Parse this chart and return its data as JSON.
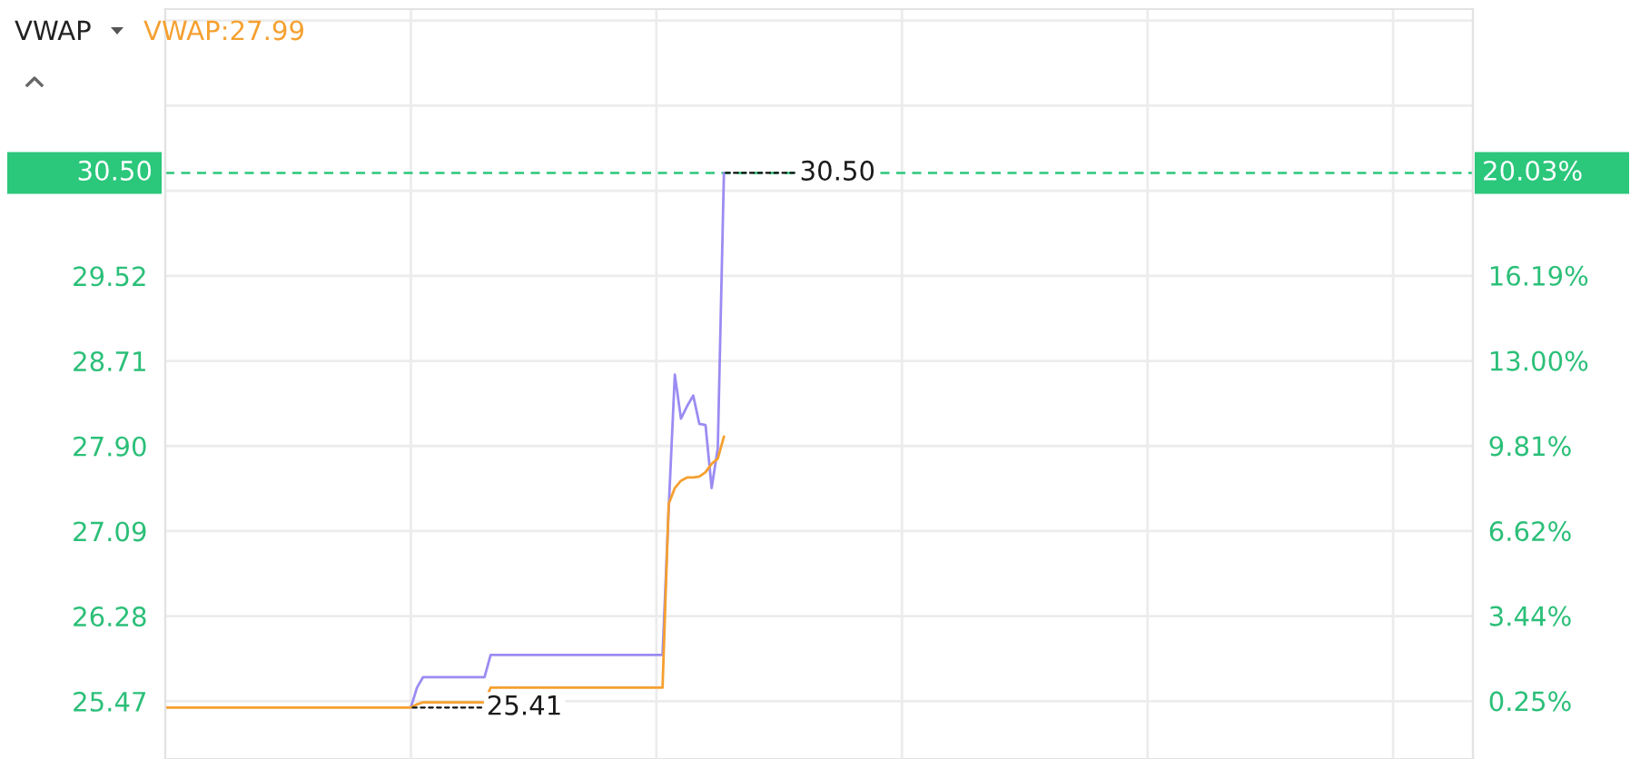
{
  "chart_data": {
    "type": "line",
    "title": "VWAP",
    "categories": [
      null,
      null,
      null,
      null,
      null,
      null,
      null,
      null,
      null,
      null,
      null,
      null,
      null,
      null,
      null,
      null,
      null,
      null,
      null,
      null,
      null,
      null,
      null,
      null,
      null,
      null,
      null,
      null,
      null,
      null,
      null,
      null,
      null,
      null,
      null,
      null,
      null,
      null,
      null,
      null,
      null,
      null,
      null,
      null,
      null,
      null,
      null,
      null,
      null,
      null,
      null,
      null,
      null,
      null,
      null,
      null,
      null,
      null,
      null,
      null,
      null,
      null,
      null,
      null,
      null,
      null,
      null,
      null,
      null,
      null,
      null,
      null,
      null,
      null,
      null,
      null,
      null,
      null,
      null,
      null,
      null,
      null,
      null,
      null,
      null,
      null,
      null,
      null,
      null,
      null,
      null,
      null,
      null,
      null,
      null,
      null,
      null,
      null,
      null,
      null,
      null,
      null,
      null,
      null,
      null,
      null,
      null,
      null,
      null,
      null,
      null,
      null,
      null,
      null,
      null,
      null,
      null,
      null,
      null,
      null,
      null,
      null,
      null,
      null,
      null,
      null,
      null,
      null,
      null,
      null,
      null,
      null,
      null,
      null,
      null,
      null,
      null,
      null,
      null,
      null,
      null,
      null,
      null,
      null,
      null,
      null,
      null,
      null,
      null,
      null,
      null,
      null,
      null,
      null,
      null,
      null,
      null,
      null,
      null,
      null,
      null,
      null,
      null,
      null,
      null,
      null,
      null,
      null,
      null,
      null,
      null,
      null,
      null,
      null,
      null,
      null,
      null,
      null,
      null,
      null,
      null,
      null,
      null,
      null,
      null,
      null,
      null,
      null,
      null,
      null,
      null,
      null,
      null,
      null,
      null,
      null,
      null,
      null,
      null,
      null,
      null,
      null,
      null,
      null,
      null,
      null,
      null,
      null,
      null,
      null,
      null,
      null,
      null,
      null
    ],
    "series": [
      {
        "color": "#9a8cf2",
        "values": [
          null,
          null,
          null,
          null,
          null,
          null,
          null,
          null,
          null,
          null,
          null,
          null,
          null,
          null,
          null,
          null,
          null,
          null,
          null,
          null,
          null,
          null,
          null,
          null,
          null,
          null,
          null,
          null,
          null,
          null,
          null,
          null,
          null,
          null,
          null,
          null,
          null,
          null,
          null,
          null,
          25.41,
          25.6,
          25.7,
          25.7,
          25.7,
          25.7,
          25.7,
          25.7,
          25.7,
          25.7,
          25.7,
          25.7,
          25.7,
          25.91,
          25.91,
          25.91,
          25.91,
          25.91,
          25.91,
          25.91,
          25.91,
          25.91,
          25.91,
          25.91,
          25.91,
          25.91,
          25.91,
          25.91,
          25.91,
          25.91,
          25.91,
          25.91,
          25.91,
          25.91,
          25.91,
          25.91,
          25.91,
          25.91,
          25.91,
          25.91,
          25.91,
          25.91,
          27.3,
          28.58,
          28.16,
          28.28,
          28.38,
          28.11,
          28.1,
          27.5,
          27.88,
          30.5,
          null,
          null,
          null,
          null,
          null,
          null,
          null,
          null,
          null,
          null,
          null,
          null,
          null,
          null,
          null,
          null,
          null,
          null,
          null,
          null,
          null,
          null,
          null,
          null,
          null,
          null,
          null,
          null,
          null,
          null,
          null,
          null,
          null,
          null,
          null,
          null,
          null,
          null,
          null,
          null,
          null,
          null,
          null,
          null,
          null,
          null,
          null,
          null,
          null,
          null,
          null,
          null,
          null,
          null,
          null,
          null,
          null,
          null,
          null,
          null,
          null,
          null,
          null,
          null,
          null,
          null,
          null,
          null,
          null,
          null,
          null,
          null,
          null,
          null,
          null,
          null,
          null,
          null,
          null,
          null,
          null,
          null,
          null,
          null,
          null,
          null,
          null,
          null,
          null,
          null,
          null,
          null,
          null,
          null,
          null,
          null,
          null,
          null,
          null,
          null,
          null,
          null,
          null,
          null,
          null,
          null,
          null,
          null,
          null,
          null,
          null,
          null,
          null,
          null,
          null,
          null,
          null,
          null,
          null,
          null,
          null,
          null
        ]
      },
      {
        "name": "VWAP:27.99",
        "color": "#f5a030",
        "values": [
          25.41,
          25.41,
          25.41,
          25.41,
          25.41,
          25.41,
          25.41,
          25.41,
          25.41,
          25.41,
          25.41,
          25.41,
          25.41,
          25.41,
          25.41,
          25.41,
          25.41,
          25.41,
          25.41,
          25.41,
          25.41,
          25.41,
          25.41,
          25.41,
          25.41,
          25.41,
          25.41,
          25.41,
          25.41,
          25.41,
          25.41,
          25.41,
          25.41,
          25.41,
          25.41,
          25.41,
          25.41,
          25.41,
          25.41,
          25.41,
          25.41,
          25.44,
          25.46,
          25.46,
          25.46,
          25.46,
          25.46,
          25.46,
          25.46,
          25.46,
          25.46,
          25.46,
          25.46,
          25.6,
          25.6,
          25.6,
          25.6,
          25.6,
          25.6,
          25.6,
          25.6,
          25.6,
          25.6,
          25.6,
          25.6,
          25.6,
          25.6,
          25.6,
          25.6,
          25.6,
          25.6,
          25.6,
          25.6,
          25.6,
          25.6,
          25.6,
          25.6,
          25.6,
          25.6,
          25.6,
          25.6,
          25.6,
          27.35,
          27.5,
          27.57,
          27.6,
          27.6,
          27.61,
          27.65,
          27.73,
          27.78,
          27.99,
          null,
          null,
          null,
          null,
          null,
          null,
          null,
          null,
          null,
          null,
          null,
          null,
          null,
          null,
          null,
          null,
          null,
          null,
          null,
          null,
          null,
          null,
          null,
          null,
          null,
          null,
          null,
          null,
          null,
          null,
          null,
          null,
          null,
          null,
          null,
          null,
          null,
          null,
          null,
          null,
          null,
          null,
          null,
          null,
          null,
          null,
          null,
          null,
          null,
          null,
          null,
          null,
          null,
          null,
          null,
          null,
          null,
          null,
          null,
          null,
          null,
          null,
          null,
          null,
          null,
          null,
          null,
          null,
          null,
          null,
          null,
          null,
          null,
          null,
          null,
          null,
          null,
          null,
          null,
          null,
          null,
          null,
          null,
          null,
          null,
          null,
          null,
          null,
          null,
          null,
          null,
          null,
          null,
          null,
          null,
          null,
          null,
          null,
          null,
          null,
          null,
          null,
          null,
          null,
          null,
          null,
          null,
          null,
          null,
          null,
          null,
          null,
          null,
          null,
          null,
          null,
          null,
          null,
          null,
          null,
          null,
          null
        ]
      }
    ],
    "ylim": [
      24.92,
      32.06
    ],
    "yticks": [
      25.47,
      26.28,
      27.09,
      {
        "value": 27.9,
        "label": "27.90"
      },
      28.71,
      29.52,
      {
        "value": 30.33,
        "label": null
      },
      {
        "value": 31.14,
        "label": null
      },
      {
        "value": 31.95,
        "label": null
      }
    ],
    "y2lim": [
      -1.93,
      26.17
    ],
    "y2ticks": [
      {
        "value": 0.25,
        "label": "0.25%"
      },
      {
        "value": 3.44,
        "label": "3.44%"
      },
      {
        "value": 6.62,
        "label": "6.62%"
      },
      {
        "value": 9.81,
        "label": "9.81%"
      },
      {
        "value": 13.0,
        "label": "13.00%"
      },
      {
        "value": 16.19,
        "label": "16.19%"
      },
      {
        "value": 19.36,
        "label": null
      },
      {
        "value": 20.03,
        "label": "20.03%"
      }
    ],
    "ref_lines": [
      {
        "axis": "y",
        "value": 30.5,
        "label": "30.50",
        "color": "#2bc77b",
        "line_style": "dashed"
      }
    ],
    "annotations": [
      "30.50",
      "25.41"
    ],
    "grid": true
  }
}
